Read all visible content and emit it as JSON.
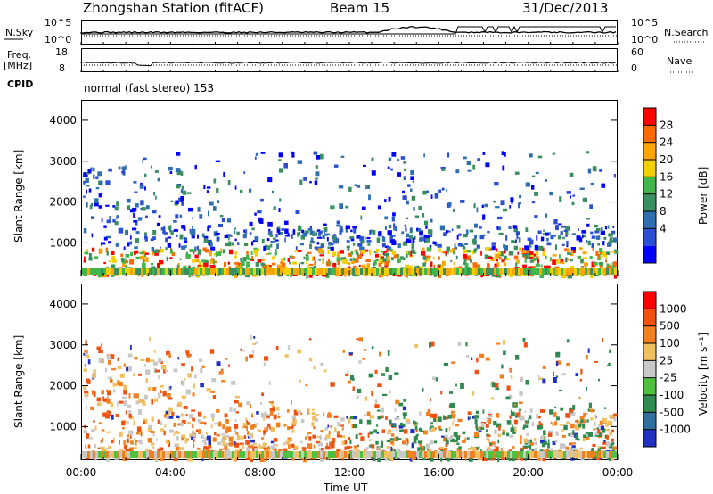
{
  "header": {
    "station": "Zhongshan Station (fitACF)",
    "beam": "Beam 15",
    "date": "31/Dec/2013"
  },
  "nsky_panel": {
    "left_label": "N.Sky",
    "left_ticks": [
      "10^5",
      "10^0"
    ],
    "right_label": "N.Search",
    "right_ticks": [
      "10^5",
      "10^0"
    ]
  },
  "freq_panel": {
    "left_label_1": "Freq.",
    "left_label_2": "[MHz]",
    "left_ticks": [
      "18",
      "8"
    ],
    "right_label": "Nave",
    "right_ticks": [
      "60",
      "0"
    ]
  },
  "cpid": {
    "label": "CPID",
    "text": "normal (fast stereo) 153"
  },
  "chart_data": [
    {
      "type": "heatmap",
      "name": "power",
      "ylabel": "Slant Range [km]",
      "yticks": [
        "4000",
        "3000",
        "2000",
        "1000"
      ],
      "ylim": [
        180,
        4500
      ],
      "colorbar_label": "Power [dB]",
      "colorbar_ticks": [
        "28",
        "24",
        "20",
        "16",
        "12",
        "8",
        "4"
      ],
      "colors": [
        "#0000ff",
        "#2a4fd0",
        "#2f6fb0",
        "#3a8f5f",
        "#41b64a",
        "#f2d000",
        "#ffa500",
        "#ff6a00",
        "#ff0000"
      ]
    },
    {
      "type": "heatmap",
      "name": "velocity",
      "ylabel": "Slant Range [km]",
      "yticks": [
        "4000",
        "3000",
        "2000",
        "1000"
      ],
      "ylim": [
        180,
        4500
      ],
      "colorbar_label": "Velocity [m s⁻¹]",
      "colorbar_ticks": [
        "1000",
        "500",
        "100",
        "25",
        "-25",
        "-100",
        "-500",
        "-1000"
      ],
      "colors": [
        "#2030c0",
        "#2e6fa0",
        "#2f8a50",
        "#4fc040",
        "#c8c8c8",
        "#f0c060",
        "#f08020",
        "#f05010",
        "#ff0000"
      ]
    }
  ],
  "x_axis": {
    "ticks": [
      "00:00",
      "04:00",
      "08:00",
      "12:00",
      "16:00",
      "20:00",
      "00:00"
    ],
    "label": "Time UT"
  }
}
